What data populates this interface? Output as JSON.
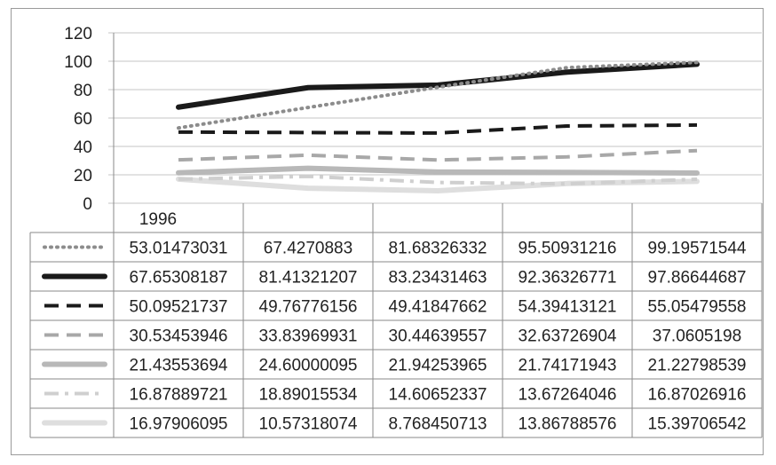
{
  "chart_data": {
    "type": "line",
    "title": "",
    "xlabel": "",
    "ylabel": "",
    "ylim": [
      0,
      120
    ],
    "yticks": [
      "0",
      "20",
      "40",
      "60",
      "80",
      "100",
      "120"
    ],
    "categories": [
      "1996",
      "",
      "",
      "",
      ""
    ],
    "grid": true,
    "legend": "data-table",
    "series": [
      {
        "values": [
          53.01473031,
          67.4270883,
          81.68326332,
          95.50931216,
          99.19571544
        ],
        "labels": [
          "53.01473031",
          "67.4270883",
          "81.68326332",
          "95.50931216",
          "99.19571544"
        ],
        "color": "#8c8c8c",
        "style": "dotted"
      },
      {
        "values": [
          67.65308187,
          81.41321207,
          83.23431463,
          92.36326771,
          97.86644687
        ],
        "labels": [
          "67.65308187",
          "81.41321207",
          "83.23431463",
          "92.36326771",
          "97.86644687"
        ],
        "color": "#1a1a1a",
        "style": "solid-thick"
      },
      {
        "values": [
          50.09521737,
          49.76776156,
          49.41847662,
          54.39413121,
          55.05479558
        ],
        "labels": [
          "50.09521737",
          "49.76776156",
          "49.41847662",
          "54.39413121",
          "55.05479558"
        ],
        "color": "#1a1a1a",
        "style": "dashed"
      },
      {
        "values": [
          30.53453946,
          33.83969931,
          30.44639557,
          32.63726904,
          37.0605198
        ],
        "labels": [
          "30.53453946",
          "33.83969931",
          "30.44639557",
          "32.63726904",
          "37.0605198"
        ],
        "color": "#a8a8a8",
        "style": "dashed"
      },
      {
        "values": [
          21.43553694,
          24.60000095,
          21.94253965,
          21.74171943,
          21.22798539
        ],
        "labels": [
          "21.43553694",
          "24.60000095",
          "21.94253965",
          "21.74171943",
          "21.22798539"
        ],
        "color": "#b8b8b8",
        "style": "solid-thick"
      },
      {
        "values": [
          16.87889721,
          18.89015534,
          14.60652337,
          13.67264046,
          16.87026916
        ],
        "labels": [
          "16.87889721",
          "18.89015534",
          "14.60652337",
          "13.67264046",
          "16.87026916"
        ],
        "color": "#cfcfcf",
        "style": "dash-dot"
      },
      {
        "values": [
          16.97906095,
          10.57318074,
          8.768450713,
          13.86788576,
          15.39706542
        ],
        "labels": [
          "16.97906095",
          "10.57318074",
          "8.768450713",
          "13.86788576",
          "15.39706542"
        ],
        "color": "#dedede",
        "style": "solid-thick"
      }
    ]
  }
}
